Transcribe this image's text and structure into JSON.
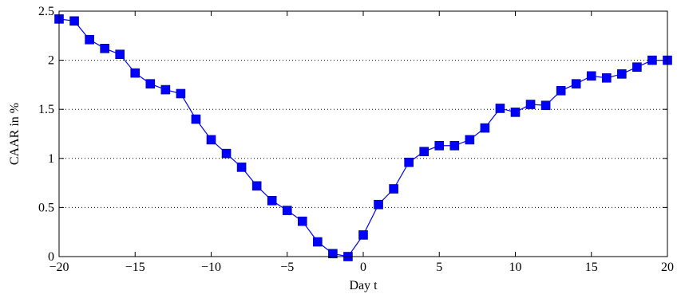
{
  "chart_data": {
    "type": "line",
    "xlabel": "Day t",
    "ylabel": "CAAR in %",
    "xlim": [
      -20,
      20
    ],
    "ylim": [
      0,
      2.5
    ],
    "xticks": [
      -20,
      -15,
      -10,
      -5,
      0,
      5,
      10,
      15,
      20
    ],
    "yticks": [
      0,
      0.5,
      1,
      1.5,
      2,
      2.5
    ],
    "xtick_labels": [
      "−20",
      "−15",
      "−10",
      "−5",
      "0",
      "5",
      "10",
      "15",
      "20"
    ],
    "ytick_labels": [
      "0",
      "0.5",
      "1",
      "1.5",
      "2",
      "2.5"
    ],
    "grid": "horizontal dotted",
    "marker": "square",
    "color": "#0000ff",
    "series": [
      {
        "x": [
          -20,
          -19,
          -18,
          -17,
          -16,
          -15,
          -14,
          -13,
          -12,
          -11,
          -10,
          -9,
          -8,
          -7,
          -6,
          -5,
          -4,
          -3,
          -2,
          -1,
          0,
          1,
          2,
          3,
          4,
          5,
          6,
          7,
          8,
          9,
          10,
          11,
          12,
          13,
          14,
          15,
          16,
          17,
          18,
          19,
          20
        ],
        "y": [
          2.42,
          2.4,
          2.21,
          2.12,
          2.06,
          1.87,
          1.76,
          1.7,
          1.66,
          1.4,
          1.19,
          1.05,
          0.91,
          0.72,
          0.57,
          0.47,
          0.36,
          0.15,
          0.03,
          0.0,
          0.22,
          0.53,
          0.69,
          0.96,
          1.07,
          1.13,
          1.13,
          1.19,
          1.31,
          1.51,
          1.47,
          1.55,
          1.54,
          1.69,
          1.76,
          1.84,
          1.82,
          1.86,
          1.93,
          2.0,
          2.0
        ]
      }
    ]
  }
}
